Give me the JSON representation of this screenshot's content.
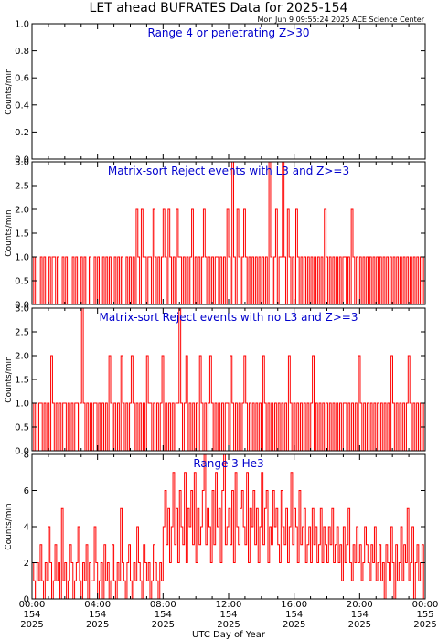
{
  "title": "LET ahead BUFRATES Data for 2025-154",
  "timestamp": "Mon Jun  9 09:55:24 2025 ACE Science Center",
  "xlabel": "UTC Day of Year",
  "x_ticks": [
    {
      "time": "00:00",
      "doy": "154",
      "year": "2025"
    },
    {
      "time": "04:00",
      "doy": "154",
      "year": "2025"
    },
    {
      "time": "08:00",
      "doy": "154",
      "year": "2025"
    },
    {
      "time": "12:00",
      "doy": "154",
      "year": "2025"
    },
    {
      "time": "16:00",
      "doy": "154",
      "year": "2025"
    },
    {
      "time": "20:00",
      "doy": "154",
      "year": "2025"
    },
    {
      "time": "00:00",
      "doy": "155",
      "year": "2025"
    }
  ],
  "colors": {
    "series": "#ff0000",
    "panel_title": "#0000cc",
    "axes": "#000000"
  },
  "chart_data": [
    {
      "type": "line",
      "title": "Range 4 or   penetrating Z>30",
      "ylabel": "Counts/min",
      "xlim": [
        0,
        24
      ],
      "ylim": [
        0,
        1.0
      ],
      "y_ticks": [
        "0.0",
        "0.2",
        "0.4",
        "0.6",
        "0.8",
        "1.0"
      ],
      "y_tick_values": [
        0,
        0.2,
        0.4,
        0.6,
        0.8,
        1.0
      ],
      "series": [
        {
          "values": [
            0
          ]
        }
      ]
    },
    {
      "type": "line",
      "title": "Matrix-sort Reject events with L3 and Z>=3",
      "ylabel": "Counts/min",
      "xlim": [
        0,
        24
      ],
      "ylim": [
        0,
        3.0
      ],
      "y_ticks": [
        "0.0",
        "0.5",
        "1.0",
        "1.5",
        "2.0",
        "2.5",
        "3.0"
      ],
      "y_tick_values": [
        0,
        0.5,
        1.0,
        1.5,
        2.0,
        2.5,
        3.0
      ],
      "series": [
        {
          "values": [
            1,
            0,
            1,
            0,
            0,
            1,
            0,
            1,
            0,
            0,
            1,
            0,
            1,
            1,
            0,
            1,
            0,
            0,
            1,
            0,
            1,
            0,
            0,
            0,
            1,
            0,
            1,
            0,
            0,
            1,
            0,
            1,
            0,
            0,
            1,
            0,
            0,
            1,
            0,
            1,
            0,
            0,
            1,
            0,
            1,
            0,
            1,
            0,
            0,
            1,
            0,
            1,
            0,
            1,
            0,
            0,
            1,
            0,
            1,
            0,
            1,
            0,
            2,
            1,
            0,
            2,
            1,
            1,
            0,
            1,
            1,
            0,
            2,
            1,
            0,
            1,
            0,
            1,
            2,
            1,
            0,
            2,
            1,
            0,
            1,
            0,
            2,
            1,
            1,
            0,
            1,
            0,
            1,
            0,
            1,
            2,
            0,
            1,
            0,
            1,
            0,
            1,
            2,
            1,
            0,
            1,
            0,
            1,
            0,
            1,
            1,
            0,
            1,
            0,
            1,
            0,
            2,
            1,
            0,
            3,
            1,
            0,
            2,
            1,
            0,
            1,
            2,
            1,
            0,
            1,
            0,
            1,
            0,
            1,
            0,
            1,
            0,
            1,
            0,
            1,
            0,
            3,
            1,
            0,
            1,
            2,
            0,
            1,
            1,
            3,
            1,
            0,
            2,
            1,
            0,
            1,
            0,
            2,
            1,
            0,
            1,
            0,
            1,
            0,
            1,
            0,
            1,
            0,
            1,
            0,
            1,
            0,
            1,
            0,
            2,
            1,
            0,
            1,
            0,
            1,
            0,
            1,
            0,
            1,
            0,
            1,
            1,
            0,
            1,
            0,
            2,
            1,
            0,
            1,
            0,
            1,
            0,
            1,
            0,
            1,
            0,
            1,
            0,
            1,
            0,
            1,
            0,
            1,
            0,
            1,
            0,
            1,
            0,
            1,
            0,
            1,
            0,
            1,
            0,
            1,
            0,
            1,
            0,
            1,
            0,
            1,
            0,
            1,
            0,
            1,
            0,
            1,
            0,
            1
          ]
        }
      ]
    },
    {
      "type": "line",
      "title": "Matrix-sort Reject events with no L3 and Z>=3",
      "ylabel": "Counts/min",
      "xlim": [
        0,
        24
      ],
      "ylim": [
        0,
        3.0
      ],
      "y_ticks": [
        "0.0",
        "0.5",
        "1.0",
        "1.5",
        "2.0",
        "2.5",
        "3.0"
      ],
      "y_tick_values": [
        0,
        0.5,
        1.0,
        1.5,
        2.0,
        2.5,
        3.0
      ],
      "series": [
        {
          "values": [
            1,
            0,
            1,
            0,
            1,
            1,
            0,
            1,
            0,
            1,
            0,
            2,
            1,
            0,
            1,
            0,
            1,
            0,
            1,
            1,
            0,
            1,
            0,
            1,
            0,
            1,
            1,
            0,
            1,
            3,
            1,
            0,
            1,
            0,
            1,
            0,
            1,
            1,
            0,
            1,
            0,
            1,
            0,
            1,
            0,
            2,
            1,
            0,
            1,
            0,
            1,
            0,
            2,
            1,
            0,
            1,
            0,
            1,
            2,
            1,
            0,
            1,
            0,
            1,
            0,
            1,
            0,
            2,
            1,
            1,
            0,
            1,
            0,
            1,
            0,
            1,
            2,
            0,
            1,
            0,
            1,
            0,
            1,
            0,
            1,
            1,
            3,
            1,
            0,
            1,
            2,
            0,
            1,
            0,
            1,
            0,
            1,
            0,
            2,
            1,
            0,
            1,
            0,
            1,
            2,
            1,
            0,
            1,
            0,
            1,
            0,
            1,
            0,
            1,
            1,
            0,
            2,
            1,
            0,
            1,
            0,
            1,
            0,
            1,
            2,
            1,
            0,
            1,
            0,
            1,
            0,
            1,
            0,
            1,
            0,
            2,
            1,
            0,
            1,
            0,
            1,
            0,
            1,
            0,
            1,
            0,
            1,
            0,
            1,
            0,
            2,
            1,
            0,
            1,
            0,
            1,
            0,
            1,
            0,
            1,
            0,
            1,
            0,
            1,
            2,
            0,
            1,
            0,
            1,
            0,
            1,
            0,
            1,
            0,
            1,
            0,
            1,
            0,
            1,
            0,
            1,
            0,
            1,
            1,
            0,
            1,
            0,
            1,
            0,
            1,
            0,
            2,
            1,
            0,
            1,
            0,
            1,
            0,
            1,
            0,
            1,
            0,
            1,
            0,
            1,
            0,
            1,
            0,
            1,
            0,
            2,
            1,
            0,
            1,
            0,
            1,
            0,
            1,
            0,
            1,
            2,
            1,
            0,
            1,
            0,
            1,
            0,
            1,
            0,
            1
          ]
        }
      ]
    },
    {
      "type": "line",
      "title": "Range 3 He3",
      "ylabel": "Counts/min",
      "xlim": [
        0,
        24
      ],
      "ylim": [
        0,
        8
      ],
      "y_ticks": [
        "0",
        "2",
        "4",
        "6",
        "8"
      ],
      "y_tick_values": [
        0,
        2,
        4,
        6,
        8
      ],
      "series": [
        {
          "values": [
            2,
            1,
            0,
            2,
            1,
            3,
            1,
            0,
            2,
            1,
            4,
            2,
            0,
            1,
            3,
            1,
            2,
            0,
            5,
            1,
            2,
            0,
            1,
            3,
            2,
            0,
            1,
            2,
            4,
            1,
            0,
            2,
            1,
            3,
            0,
            2,
            1,
            1,
            4,
            2,
            0,
            1,
            2,
            0,
            3,
            1,
            2,
            0,
            1,
            3,
            1,
            0,
            2,
            1,
            5,
            2,
            1,
            0,
            2,
            3,
            1,
            0,
            2,
            1,
            4,
            2,
            1,
            0,
            3,
            2,
            1,
            2,
            0,
            1,
            3,
            2,
            1,
            0,
            2,
            1,
            4,
            6,
            3,
            5,
            2,
            4,
            7,
            3,
            5,
            2,
            6,
            4,
            3,
            7,
            2,
            5,
            4,
            6,
            3,
            7,
            2,
            5,
            3,
            4,
            6,
            8,
            3,
            5,
            4,
            2,
            6,
            3,
            7,
            4,
            5,
            2,
            6,
            8,
            3,
            4,
            5,
            3,
            6,
            2,
            7,
            4,
            3,
            5,
            6,
            4,
            3,
            7,
            2,
            5,
            4,
            6,
            3,
            5,
            2,
            4,
            7,
            3,
            5,
            6,
            2,
            4,
            3,
            6,
            4,
            5,
            3,
            2,
            6,
            4,
            3,
            5,
            2,
            4,
            7,
            3,
            5,
            4,
            2,
            6,
            3,
            4,
            5,
            2,
            3,
            4,
            2,
            5,
            3,
            4,
            2,
            3,
            5,
            2,
            4,
            3,
            2,
            4,
            3,
            5,
            2,
            3,
            4,
            2,
            3,
            1,
            4,
            2,
            3,
            5,
            2,
            1,
            3,
            2,
            4,
            2,
            3,
            1,
            2,
            4,
            3,
            2,
            1,
            3,
            2,
            4,
            1,
            2,
            3,
            1,
            2,
            0,
            3,
            2,
            1,
            4,
            2,
            0,
            3,
            1,
            2,
            4,
            1,
            3,
            2,
            5,
            1,
            2,
            4,
            0,
            2,
            3,
            1,
            2,
            3,
            0
          ]
        }
      ]
    }
  ]
}
